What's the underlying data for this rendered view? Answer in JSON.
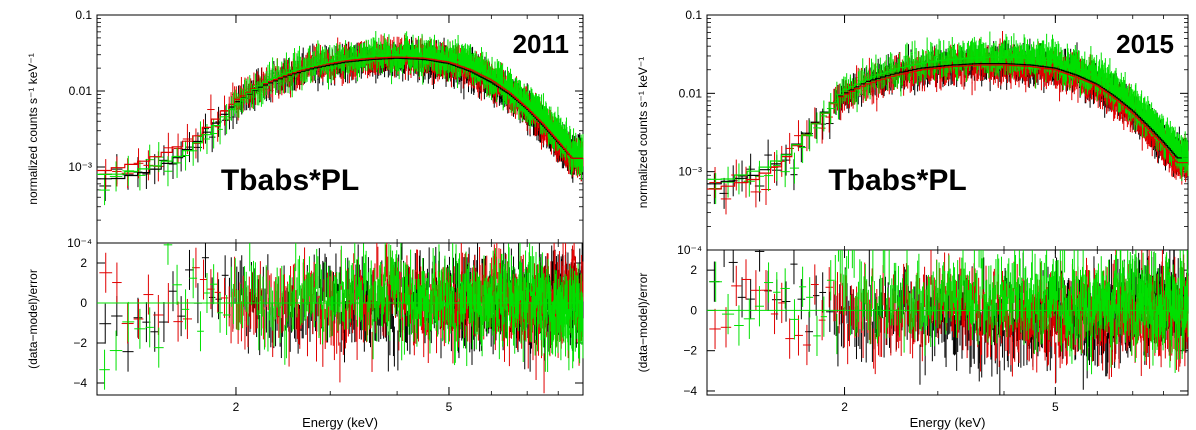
{
  "chart_data": [
    {
      "type": "scatter",
      "panel_label": "2011",
      "model_label": "Tbabs*PL",
      "xlabel": "Energy (keV)",
      "ylabel_top": "normalized counts s⁻¹ keV⁻¹",
      "ylabel_bottom": "(data−model)/error",
      "xscale": "log",
      "xlim": [
        1.1,
        8.9
      ],
      "xticks": [
        {
          "value": 2,
          "label": "2"
        },
        {
          "value": 5,
          "label": "5"
        }
      ],
      "yscale_top": "log",
      "ylim_top": [
        0.0001,
        0.1
      ],
      "yticks_top": [
        {
          "value": 0.0001,
          "label": "10⁻⁴"
        },
        {
          "value": 0.001,
          "label": "10⁻³"
        },
        {
          "value": 0.01,
          "label": "0.01"
        },
        {
          "value": 0.1,
          "label": "0.1"
        }
      ],
      "ylim_bottom": [
        -4.6,
        3.0
      ],
      "yticks_bottom": [
        {
          "value": -4,
          "label": "−4"
        },
        {
          "value": -2,
          "label": "−2"
        },
        {
          "value": 0,
          "label": "0"
        },
        {
          "value": 2,
          "label": "2"
        }
      ],
      "series": [
        {
          "color": "#000000",
          "spectrum": [
            [
              1.2,
              0.0007
            ],
            [
              1.4,
              0.0009
            ],
            [
              1.55,
              0.0013
            ],
            [
              1.7,
              0.0022
            ],
            [
              1.85,
              0.004
            ],
            [
              2.0,
              0.007
            ],
            [
              2.2,
              0.011
            ],
            [
              2.5,
              0.016
            ],
            [
              2.8,
              0.02
            ],
            [
              3.2,
              0.024
            ],
            [
              3.6,
              0.026
            ],
            [
              4.0,
              0.027
            ],
            [
              4.5,
              0.026
            ],
            [
              5.0,
              0.023
            ],
            [
              5.5,
              0.018
            ],
            [
              6.0,
              0.013
            ],
            [
              6.5,
              0.009
            ],
            [
              7.0,
              0.0058
            ],
            [
              7.5,
              0.0035
            ],
            [
              8.0,
              0.0021
            ],
            [
              8.5,
              0.0013
            ]
          ],
          "residuals": [
            [
              1.3,
              -1.0
            ],
            [
              1.5,
              0.5
            ],
            [
              1.7,
              1.2
            ],
            [
              2.0,
              0.3
            ],
            [
              2.5,
              -0.5
            ],
            [
              3.0,
              0.2
            ],
            [
              4.0,
              -0.3
            ],
            [
              5.0,
              0.1
            ],
            [
              6.0,
              0.3
            ],
            [
              7.0,
              -0.2
            ],
            [
              8.0,
              0.4
            ]
          ]
        },
        {
          "color": "#e00000",
          "spectrum": [
            [
              1.15,
              0.0009
            ],
            [
              1.35,
              0.0012
            ],
            [
              1.5,
              0.0016
            ],
            [
              1.7,
              0.0026
            ],
            [
              1.85,
              0.0045
            ],
            [
              2.0,
              0.0075
            ],
            [
              2.2,
              0.0115
            ],
            [
              2.5,
              0.0165
            ],
            [
              2.8,
              0.021
            ],
            [
              3.2,
              0.025
            ],
            [
              3.6,
              0.027
            ],
            [
              4.0,
              0.028
            ],
            [
              4.5,
              0.027
            ],
            [
              5.0,
              0.024
            ],
            [
              5.5,
              0.019
            ],
            [
              6.0,
              0.014
            ],
            [
              6.5,
              0.0095
            ],
            [
              7.0,
              0.006
            ],
            [
              7.5,
              0.0037
            ],
            [
              8.0,
              0.0022
            ],
            [
              8.5,
              0.0013
            ]
          ],
          "residuals": [
            [
              1.2,
              0.3
            ],
            [
              1.45,
              -0.7
            ],
            [
              1.65,
              1.5
            ],
            [
              2.0,
              -0.2
            ],
            [
              2.5,
              0.4
            ],
            [
              3.0,
              -0.4
            ],
            [
              4.0,
              0.3
            ],
            [
              5.0,
              -0.2
            ],
            [
              6.0,
              0.5
            ],
            [
              7.0,
              -0.5
            ],
            [
              8.0,
              0.2
            ]
          ]
        },
        {
          "color": "#00e000",
          "spectrum": [
            [
              1.2,
              0.0008
            ],
            [
              1.4,
              0.001
            ],
            [
              1.6,
              0.0015
            ],
            [
              1.75,
              0.0025
            ],
            [
              1.9,
              0.0045
            ],
            [
              2.1,
              0.009
            ],
            [
              2.3,
              0.014
            ],
            [
              2.6,
              0.019
            ],
            [
              3.0,
              0.024
            ],
            [
              3.4,
              0.028
            ],
            [
              3.8,
              0.03
            ],
            [
              4.2,
              0.03
            ],
            [
              4.7,
              0.028
            ],
            [
              5.2,
              0.024
            ],
            [
              5.7,
              0.019
            ],
            [
              6.2,
              0.0135
            ],
            [
              6.7,
              0.009
            ],
            [
              7.2,
              0.0058
            ],
            [
              7.7,
              0.0036
            ],
            [
              8.2,
              0.0022
            ],
            [
              8.7,
              0.0014
            ]
          ],
          "residuals": [
            [
              1.3,
              -1.5
            ],
            [
              1.5,
              0.2
            ],
            [
              1.7,
              -0.2
            ],
            [
              2.0,
              0.6
            ],
            [
              2.5,
              0.1
            ],
            [
              3.0,
              0.4
            ],
            [
              4.0,
              0.2
            ],
            [
              5.0,
              0.0
            ],
            [
              6.0,
              -0.1
            ],
            [
              7.0,
              0.3
            ],
            [
              8.0,
              -0.3
            ]
          ]
        }
      ]
    },
    {
      "type": "scatter",
      "panel_label": "2015",
      "model_label": "Tbabs*PL",
      "xlabel": "Energy (keV)",
      "ylabel_top": "normalized counts s⁻¹ keV⁻¹",
      "ylabel_bottom": "(data−model)/error",
      "xscale": "log",
      "xlim": [
        1.1,
        8.9
      ],
      "xticks": [
        {
          "value": 2,
          "label": "2"
        },
        {
          "value": 5,
          "label": "5"
        }
      ],
      "yscale_top": "log",
      "ylim_top": [
        0.0001,
        0.1
      ],
      "yticks_top": [
        {
          "value": 0.0001,
          "label": "10⁻⁴"
        },
        {
          "value": 0.001,
          "label": "10⁻³"
        },
        {
          "value": 0.01,
          "label": "0.01"
        },
        {
          "value": 0.1,
          "label": "0.1"
        }
      ],
      "ylim_bottom": [
        -4.2,
        3.0
      ],
      "yticks_bottom": [
        {
          "value": -4,
          "label": "−4"
        },
        {
          "value": -2,
          "label": "−2"
        },
        {
          "value": 0,
          "label": "0"
        },
        {
          "value": 2,
          "label": "2"
        }
      ],
      "series": [
        {
          "color": "#000000",
          "spectrum": [
            [
              1.15,
              0.0007
            ],
            [
              1.35,
              0.0009
            ],
            [
              1.5,
              0.0013
            ],
            [
              1.65,
              0.0025
            ],
            [
              1.8,
              0.005
            ],
            [
              1.95,
              0.009
            ],
            [
              2.2,
              0.014
            ],
            [
              2.5,
              0.018
            ],
            [
              2.8,
              0.021
            ],
            [
              3.2,
              0.023
            ],
            [
              3.6,
              0.024
            ],
            [
              4.0,
              0.024
            ],
            [
              4.5,
              0.023
            ],
            [
              5.0,
              0.021
            ],
            [
              5.5,
              0.017
            ],
            [
              6.0,
              0.013
            ],
            [
              6.5,
              0.009
            ],
            [
              7.0,
              0.006
            ],
            [
              7.5,
              0.0038
            ],
            [
              8.0,
              0.0024
            ],
            [
              8.5,
              0.0015
            ]
          ],
          "residuals": [
            [
              1.2,
              2.7
            ],
            [
              1.4,
              1.5
            ],
            [
              1.6,
              0.3
            ],
            [
              2.0,
              -0.4
            ],
            [
              2.5,
              0.2
            ],
            [
              3.0,
              -0.6
            ],
            [
              4.0,
              -0.8
            ],
            [
              5.0,
              -0.2
            ],
            [
              6.0,
              -0.9
            ],
            [
              7.0,
              0.3
            ],
            [
              8.0,
              0.2
            ]
          ]
        },
        {
          "color": "#e00000",
          "spectrum": [
            [
              1.15,
              0.0006
            ],
            [
              1.35,
              0.0008
            ],
            [
              1.5,
              0.0012
            ],
            [
              1.65,
              0.0024
            ],
            [
              1.8,
              0.0048
            ],
            [
              1.95,
              0.0088
            ],
            [
              2.2,
              0.013
            ],
            [
              2.5,
              0.017
            ],
            [
              2.8,
              0.02
            ],
            [
              3.2,
              0.022
            ],
            [
              3.6,
              0.023
            ],
            [
              4.0,
              0.023
            ],
            [
              4.5,
              0.022
            ],
            [
              5.0,
              0.02
            ],
            [
              5.5,
              0.016
            ],
            [
              6.0,
              0.0125
            ],
            [
              6.5,
              0.0085
            ],
            [
              7.0,
              0.0056
            ],
            [
              7.5,
              0.0035
            ],
            [
              8.0,
              0.0022
            ],
            [
              8.5,
              0.0013
            ]
          ],
          "residuals": [
            [
              1.25,
              -0.1
            ],
            [
              1.45,
              0.6
            ],
            [
              1.7,
              -0.3
            ],
            [
              2.0,
              0.2
            ],
            [
              2.5,
              -0.4
            ],
            [
              3.0,
              0.3
            ],
            [
              4.0,
              -0.2
            ],
            [
              5.0,
              -0.5
            ],
            [
              6.0,
              0.2
            ],
            [
              7.0,
              -0.3
            ],
            [
              8.0,
              0.1
            ]
          ]
        },
        {
          "color": "#00e000",
          "spectrum": [
            [
              1.2,
              0.0008
            ],
            [
              1.4,
              0.0011
            ],
            [
              1.55,
              0.0016
            ],
            [
              1.7,
              0.003
            ],
            [
              1.85,
              0.006
            ],
            [
              2.0,
              0.011
            ],
            [
              2.3,
              0.017
            ],
            [
              2.6,
              0.022
            ],
            [
              3.0,
              0.026
            ],
            [
              3.4,
              0.028
            ],
            [
              3.8,
              0.029
            ],
            [
              4.2,
              0.029
            ],
            [
              4.7,
              0.027
            ],
            [
              5.2,
              0.024
            ],
            [
              5.7,
              0.019
            ],
            [
              6.2,
              0.014
            ],
            [
              6.7,
              0.0095
            ],
            [
              7.2,
              0.0062
            ],
            [
              7.7,
              0.0039
            ],
            [
              8.2,
              0.0024
            ],
            [
              8.7,
              0.0015
            ]
          ],
          "residuals": [
            [
              1.2,
              0.4
            ],
            [
              1.45,
              1.2
            ],
            [
              1.7,
              0.5
            ],
            [
              2.0,
              0.8
            ],
            [
              2.5,
              0.5
            ],
            [
              3.0,
              0.7
            ],
            [
              4.0,
              0.6
            ],
            [
              5.0,
              0.4
            ],
            [
              6.0,
              0.3
            ],
            [
              7.0,
              0.5
            ],
            [
              8.0,
              0.2
            ]
          ]
        }
      ]
    }
  ]
}
